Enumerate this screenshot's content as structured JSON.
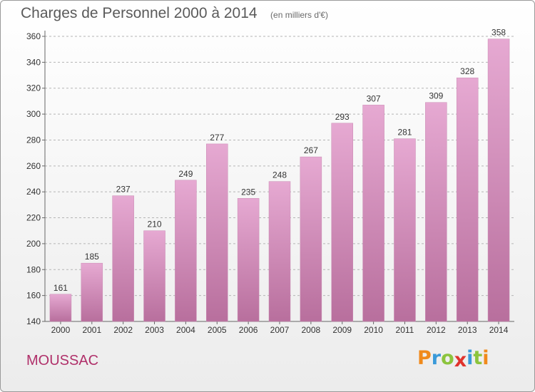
{
  "header": {
    "title": "Charges de Personnel 2000 à 2014",
    "subtitle": "(en milliers d'€)"
  },
  "footer": {
    "commune": "MOUSSAC",
    "logo_text": "Proxiti"
  },
  "colors": {
    "bar_light": "#e6a9d2",
    "bar_dark": "#b86f9d",
    "accent": "#b0306a",
    "logo": [
      "#f08a1c",
      "#3a9ad9",
      "#8cc43d",
      "#e0332c",
      "#3a9ad9",
      "#8cc43d",
      "#f08a1c"
    ]
  },
  "chart_data": {
    "type": "bar",
    "title": "Charges de Personnel 2000 à 2014",
    "subtitle": "(en milliers d'€)",
    "xlabel": "",
    "ylabel": "",
    "categories": [
      "2000",
      "2001",
      "2002",
      "2003",
      "2004",
      "2005",
      "2006",
      "2007",
      "2008",
      "2009",
      "2010",
      "2011",
      "2012",
      "2013",
      "2014"
    ],
    "values": [
      161,
      185,
      237,
      210,
      249,
      277,
      235,
      248,
      267,
      293,
      307,
      281,
      309,
      328,
      358
    ],
    "ylim": [
      140,
      360
    ],
    "yticks": [
      140,
      160,
      180,
      200,
      220,
      240,
      260,
      280,
      300,
      320,
      340,
      360
    ],
    "grid": "horizontal dashed",
    "legend": "none"
  }
}
